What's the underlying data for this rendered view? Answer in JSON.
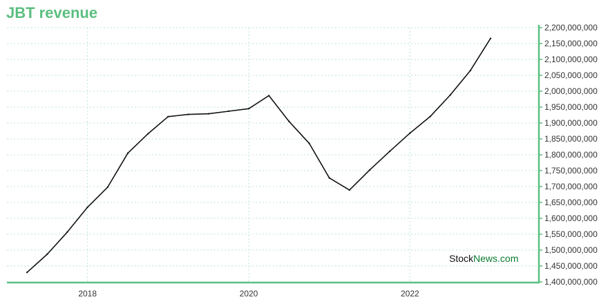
{
  "chart_data": {
    "type": "line",
    "title": "JBT revenue",
    "xlabel": "",
    "ylabel": "",
    "xlim": [
      2017.0,
      2023.6
    ],
    "ylim": [
      1400000000,
      2200000000
    ],
    "y_ticks": [
      {
        "value": 2200000000,
        "label": "2,200,000,000"
      },
      {
        "value": 2150000000,
        "label": "2,150,000,000"
      },
      {
        "value": 2100000000,
        "label": "2,100,000,000"
      },
      {
        "value": 2050000000,
        "label": "2,050,000,000"
      },
      {
        "value": 2000000000,
        "label": "2,000,000,000"
      },
      {
        "value": 1950000000,
        "label": "1,950,000,000"
      },
      {
        "value": 1900000000,
        "label": "1,900,000,000"
      },
      {
        "value": 1850000000,
        "label": "1,850,000,000"
      },
      {
        "value": 1800000000,
        "label": "1,800,000,000"
      },
      {
        "value": 1750000000,
        "label": "1,750,000,000"
      },
      {
        "value": 1700000000,
        "label": "1,700,000,000"
      },
      {
        "value": 1650000000,
        "label": "1,650,000,000"
      },
      {
        "value": 1600000000,
        "label": "1,600,000,000"
      },
      {
        "value": 1550000000,
        "label": "1,550,000,000"
      },
      {
        "value": 1500000000,
        "label": "1,500,000,000"
      },
      {
        "value": 1450000000,
        "label": "1,450,000,000"
      },
      {
        "value": 1400000000,
        "label": "1,400,000,000"
      }
    ],
    "x_ticks": [
      {
        "value": 2018,
        "label": "2018"
      },
      {
        "value": 2020,
        "label": "2020"
      },
      {
        "value": 2022,
        "label": "2022"
      }
    ],
    "series": [
      {
        "points": [
          {
            "x": 2017.25,
            "y": 1430000000
          },
          {
            "x": 2017.5,
            "y": 1487000000
          },
          {
            "x": 2017.75,
            "y": 1557000000
          },
          {
            "x": 2018.0,
            "y": 1635000000
          },
          {
            "x": 2018.25,
            "y": 1698000000
          },
          {
            "x": 2018.5,
            "y": 1805000000
          },
          {
            "x": 2018.75,
            "y": 1866000000
          },
          {
            "x": 2019.0,
            "y": 1920000000
          },
          {
            "x": 2019.25,
            "y": 1927000000
          },
          {
            "x": 2019.5,
            "y": 1929000000
          },
          {
            "x": 2019.75,
            "y": 1937000000
          },
          {
            "x": 2020.0,
            "y": 1945000000
          },
          {
            "x": 2020.25,
            "y": 1986000000
          },
          {
            "x": 2020.5,
            "y": 1905000000
          },
          {
            "x": 2020.75,
            "y": 1836000000
          },
          {
            "x": 2021.0,
            "y": 1727000000
          },
          {
            "x": 2021.25,
            "y": 1689000000
          },
          {
            "x": 2021.5,
            "y": 1752000000
          },
          {
            "x": 2021.75,
            "y": 1811000000
          },
          {
            "x": 2022.0,
            "y": 1868000000
          },
          {
            "x": 2022.25,
            "y": 1920000000
          },
          {
            "x": 2022.5,
            "y": 1988000000
          },
          {
            "x": 2022.75,
            "y": 2065000000
          },
          {
            "x": 2023.0,
            "y": 2166000000
          }
        ]
      }
    ],
    "grid": true,
    "line_color": "#111111",
    "accent_color": "#5bbf80",
    "grid_color": "#bfe5cf"
  },
  "watermark": {
    "part1": "Stock",
    "part2": "News",
    "part3": ".com",
    "color_dark": "#111111",
    "color_green": "#0a7a2f"
  }
}
